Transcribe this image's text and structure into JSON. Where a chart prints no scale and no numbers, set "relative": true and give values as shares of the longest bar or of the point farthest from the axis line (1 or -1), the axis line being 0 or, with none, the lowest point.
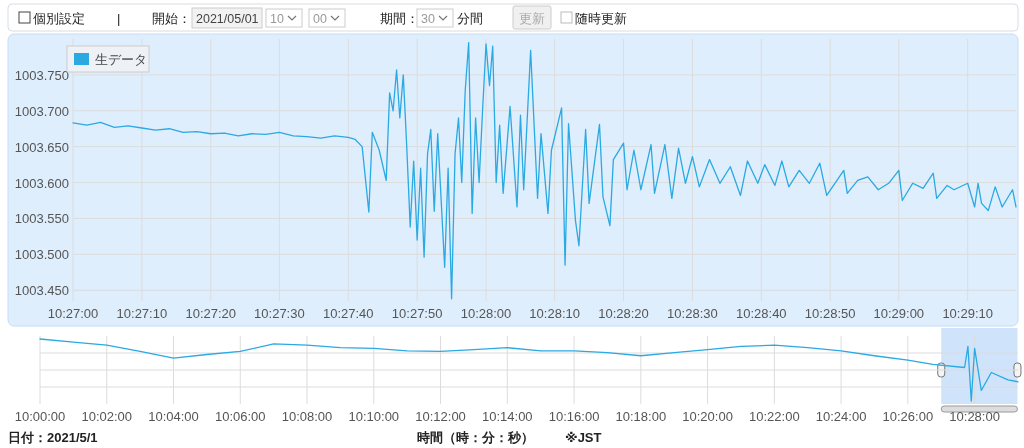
{
  "chart_data": [
    {
      "type": "other",
      "annotations": [
        "個別設定",
        "|",
        "開始：",
        "2021/05/01",
        "10",
        "00",
        "期間：",
        "30",
        "分間",
        "更新",
        "随時更新"
      ]
    },
    {
      "type": "line",
      "legend": "top left",
      "grid": true,
      "x": [
        10.45,
        10.45056,
        10.45111,
        10.45167,
        10.45222,
        10.45278,
        10.45333,
        10.45389,
        10.45444,
        10.455,
        10.45556,
        10.45611,
        10.45667,
        10.45722,
        10.45778,
        10.45833,
        10.45889,
        10.45944,
        10.46,
        10.46056,
        10.46111,
        10.46139,
        10.46167,
        10.46194,
        10.46208,
        10.46236,
        10.46264,
        10.46278,
        10.46292,
        10.46306,
        10.46319,
        10.46333,
        10.46347,
        10.46361,
        10.46375,
        10.46389,
        10.46403,
        10.46417,
        10.46431,
        10.46444,
        10.46458,
        10.46472,
        10.465,
        10.46514,
        10.46528,
        10.46542,
        10.46556,
        10.46569,
        10.46583,
        10.46597,
        10.46611,
        10.46625,
        10.46639,
        10.46653,
        10.46667,
        10.46681,
        10.46694,
        10.46708,
        10.46722,
        10.46736,
        10.46764,
        10.46792,
        10.46806,
        10.46819,
        10.46847,
        10.46875,
        10.46889,
        10.46917,
        10.46931,
        10.46972,
        10.46986,
        10.47,
        10.47028,
        10.47042,
        10.47069,
        10.47083,
        10.47125,
        10.47139,
        10.47167,
        10.47181,
        10.47222,
        10.47236,
        10.47264,
        10.47292,
        10.47333,
        10.47347,
        10.47389,
        10.47417,
        10.47444,
        10.47472,
        10.475,
        10.47528,
        10.47569,
        10.47611,
        10.47653,
        10.47694,
        10.47722,
        10.47764,
        10.47792,
        10.47833,
        10.47861,
        10.47889,
        10.47931,
        10.47972,
        10.48014,
        10.48042,
        10.48111,
        10.48125,
        10.48167,
        10.48208,
        10.4825,
        10.48292,
        10.48333,
        10.48347,
        10.48389,
        10.48431,
        10.48472,
        10.48486,
        10.48528,
        10.48556,
        10.48611,
        10.48639,
        10.48653,
        10.48667,
        10.48694,
        10.48722,
        10.4875,
        10.48792,
        10.48806
      ],
      "series": [
        {
          "name": "生データ",
          "color": "#2aa9e2",
          "values": [
            1003.683,
            1003.68,
            1003.684,
            1003.677,
            1003.679,
            1003.676,
            1003.673,
            1003.675,
            1003.67,
            1003.671,
            1003.668,
            1003.669,
            1003.665,
            1003.668,
            1003.667,
            1003.67,
            1003.665,
            1003.664,
            1003.662,
            1003.665,
            1003.663,
            1003.66,
            1003.65,
            1003.559,
            1003.67,
            1003.645,
            1003.603,
            1003.725,
            1003.7,
            1003.757,
            1003.69,
            1003.75,
            1003.65,
            1003.538,
            1003.63,
            1003.52,
            1003.62,
            1003.496,
            1003.64,
            1003.674,
            1003.56,
            1003.668,
            1003.482,
            1003.62,
            1003.438,
            1003.64,
            1003.69,
            1003.6,
            1003.728,
            1003.795,
            1003.557,
            1003.69,
            1003.6,
            1003.7,
            1003.793,
            1003.735,
            1003.79,
            1003.6,
            1003.68,
            1003.585,
            1003.706,
            1003.566,
            1003.694,
            1003.59,
            1003.784,
            1003.578,
            1003.668,
            1003.557,
            1003.645,
            1003.704,
            1003.485,
            1003.682,
            1003.547,
            1003.512,
            1003.674,
            1003.571,
            1003.681,
            1003.58,
            1003.54,
            1003.632,
            1003.655,
            1003.59,
            1003.645,
            1003.59,
            1003.653,
            1003.585,
            1003.653,
            1003.578,
            1003.648,
            1003.599,
            1003.636,
            1003.594,
            1003.632,
            1003.599,
            1003.622,
            1003.582,
            1003.63,
            1003.599,
            1003.625,
            1003.596,
            1003.63,
            1003.594,
            1003.617,
            1003.599,
            1003.627,
            1003.582,
            1003.617,
            1003.585,
            1003.603,
            1003.608,
            1003.59,
            1003.599,
            1003.617,
            1003.575,
            1003.599,
            1003.592,
            1003.613,
            1003.578,
            1003.596,
            1003.59,
            1003.599,
            1003.566,
            1003.599,
            1003.571,
            1003.561,
            1003.594,
            1003.566,
            1003.59,
            1003.566
          ]
        }
      ],
      "xlim": [
        10.45,
        10.48806
      ],
      "ylim": [
        1003.435,
        1003.8
      ],
      "xticks": [
        {
          "value": 10.45,
          "label": "10:27:00"
        },
        {
          "value": 10.45278,
          "label": "10:27:10"
        },
        {
          "value": 10.45556,
          "label": "10:27:20"
        },
        {
          "value": 10.45833,
          "label": "10:27:30"
        },
        {
          "value": 10.46111,
          "label": "10:27:40"
        },
        {
          "value": 10.46389,
          "label": "10:27:50"
        },
        {
          "value": 10.46667,
          "label": "10:28:00"
        },
        {
          "value": 10.46944,
          "label": "10:28:10"
        },
        {
          "value": 10.47222,
          "label": "10:28:20"
        },
        {
          "value": 10.475,
          "label": "10:28:30"
        },
        {
          "value": 10.47778,
          "label": "10:28:40"
        },
        {
          "value": 10.48056,
          "label": "10:28:50"
        },
        {
          "value": 10.48333,
          "label": "10:29:00"
        },
        {
          "value": 10.48611,
          "label": "10:29:10"
        }
      ],
      "yticks": [
        {
          "value": 1003.45,
          "label": "1003.450"
        },
        {
          "value": 1003.5,
          "label": "1003.500"
        },
        {
          "value": 1003.55,
          "label": "1003.550"
        },
        {
          "value": 1003.6,
          "label": "1003.600"
        },
        {
          "value": 1003.65,
          "label": "1003.650"
        },
        {
          "value": 1003.7,
          "label": "1003.700"
        },
        {
          "value": 1003.75,
          "label": "1003.750"
        }
      ]
    },
    {
      "type": "line",
      "relative": true,
      "grid": true,
      "tick_labels": "x",
      "xlabel": "時間（時：分：秒）",
      "annotations": [
        "日付：2021/5/1",
        "※JST"
      ],
      "x": [
        10.0,
        10.01667,
        10.03333,
        10.05,
        10.06667,
        10.08333,
        10.1,
        10.11667,
        10.13333,
        10.15,
        10.16667,
        10.18333,
        10.2,
        10.21667,
        10.23333,
        10.25,
        10.26667,
        10.28333,
        10.3,
        10.31667,
        10.33333,
        10.35,
        10.36667,
        10.38333,
        10.4,
        10.41667,
        10.43333,
        10.44583,
        10.46167,
        10.46333,
        10.465,
        10.46667,
        10.47,
        10.475,
        10.48333,
        10.48833
      ],
      "series": [
        {
          "color": "#2aa9e2",
          "values": [
            1.0,
            0.95,
            0.9,
            0.8,
            0.69,
            0.75,
            0.8,
            0.92,
            0.9,
            0.86,
            0.85,
            0.81,
            0.8,
            0.83,
            0.86,
            0.81,
            0.81,
            0.78,
            0.73,
            0.78,
            0.83,
            0.88,
            0.9,
            0.86,
            0.81,
            0.73,
            0.66,
            0.59,
            0.54,
            0.88,
            0.0,
            0.85,
            0.17,
            0.46,
            0.34,
            0.31
          ]
        }
      ],
      "xlim": [
        10.0,
        10.48833
      ],
      "xticks": [
        {
          "value": 10.0,
          "label": "10:00:00"
        },
        {
          "value": 10.03333,
          "label": "10:02:00"
        },
        {
          "value": 10.06667,
          "label": "10:04:00"
        },
        {
          "value": 10.1,
          "label": "10:06:00"
        },
        {
          "value": 10.13333,
          "label": "10:08:00"
        },
        {
          "value": 10.16667,
          "label": "10:10:00"
        },
        {
          "value": 10.2,
          "label": "10:12:00"
        },
        {
          "value": 10.23333,
          "label": "10:14:00"
        },
        {
          "value": 10.26667,
          "label": "10:16:00"
        },
        {
          "value": 10.3,
          "label": "10:18:00"
        },
        {
          "value": 10.33333,
          "label": "10:20:00"
        },
        {
          "value": 10.36667,
          "label": "10:22:00"
        },
        {
          "value": 10.4,
          "label": "10:24:00"
        },
        {
          "value": 10.43333,
          "label": "10:26:00"
        },
        {
          "value": 10.46667,
          "label": "10:28:00"
        }
      ],
      "bands": [
        {
          "axis": "x",
          "from": 10.45,
          "to": 10.48806,
          "color": "#cfe3fb"
        }
      ]
    }
  ]
}
